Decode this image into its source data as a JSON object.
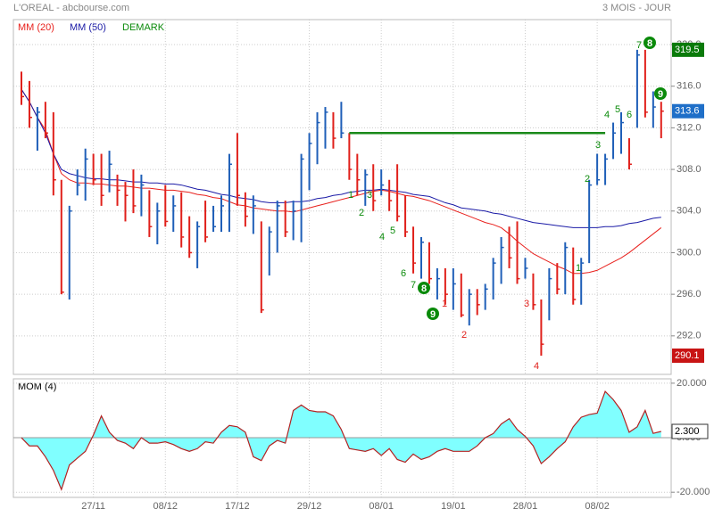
{
  "header": {
    "title": "L'OREAL - abcbourse.com",
    "period": "3 MOIS - JOUR"
  },
  "chart_data": [
    {
      "type": "ohlc",
      "high": [
        317.4,
        316.5,
        314.0,
        314.5,
        313.5,
        307.0,
        304.5,
        308.0,
        310.0,
        309.5,
        309.5,
        309.8,
        307.5,
        306.8,
        308.0,
        307.5,
        306.0,
        304.8,
        306.5,
        305.5,
        305.8,
        303.5,
        303.0,
        305.0,
        304.5,
        305.5,
        309.5,
        311.5,
        305.8,
        305.5,
        303.0,
        302.5,
        305.0,
        305.0,
        305.0,
        309.5,
        311.5,
        313.5,
        314.0,
        313.5,
        314.5,
        311.5,
        309.5,
        308.0,
        308.5,
        308.0,
        307.0,
        308.5,
        305.5,
        302.5,
        301.5,
        301.0,
        298.5,
        298.5,
        298.5,
        298.0,
        296.5,
        296.5,
        297.0,
        299.5,
        301.5,
        302.5,
        303.0,
        299.5,
        298.0,
        295.5,
        298.5,
        299.0,
        301.0,
        300.5,
        299.5,
        307.0,
        309.5,
        309.5,
        312.5,
        313.5,
        311.0,
        319.5,
        319.5,
        315.5,
        314.5
      ],
      "low": [
        314.2,
        312.0,
        309.8,
        311.0,
        305.5,
        296.0,
        295.5,
        305.5,
        305.0,
        306.5,
        304.5,
        305.8,
        304.5,
        303.0,
        303.8,
        303.5,
        301.5,
        300.8,
        302.5,
        302.0,
        300.5,
        299.5,
        298.5,
        301.0,
        302.0,
        302.0,
        302.0,
        304.5,
        302.5,
        301.8,
        294.2,
        297.8,
        300.0,
        301.5,
        301.2,
        301.0,
        306.0,
        308.5,
        310.0,
        310.0,
        311.0,
        307.0,
        305.5,
        304.5,
        304.0,
        305.5,
        304.0,
        303.0,
        301.5,
        298.0,
        297.5,
        297.0,
        295.5,
        295.0,
        294.5,
        293.8,
        293.0,
        294.0,
        294.5,
        295.5,
        297.0,
        298.5,
        297.0,
        297.5,
        294.5,
        290.1,
        293.5,
        296.0,
        296.0,
        295.0,
        295.0,
        299.0,
        306.5,
        306.5,
        309.0,
        309.5,
        308.0,
        312.0,
        313.0,
        312.0,
        311.0
      ],
      "close": [
        315.0,
        313.0,
        313.5,
        311.5,
        307.0,
        296.2,
        304.0,
        306.5,
        309.0,
        307.0,
        305.5,
        308.5,
        306.0,
        305.5,
        304.5,
        306.5,
        302.5,
        304.0,
        303.0,
        304.5,
        301.5,
        300.0,
        302.5,
        301.5,
        302.5,
        304.5,
        308.5,
        305.5,
        303.5,
        304.5,
        294.5,
        302.0,
        304.5,
        302.0,
        304.0,
        309.0,
        310.5,
        312.5,
        313.5,
        311.0,
        311.5,
        308.0,
        307.0,
        307.5,
        305.0,
        306.5,
        305.0,
        303.5,
        302.0,
        299.0,
        301.0,
        297.5,
        297.5,
        296.0,
        297.0,
        294.0,
        296.0,
        295.0,
        296.5,
        299.0,
        300.5,
        299.5,
        297.5,
        298.5,
        295.0,
        291.2,
        297.5,
        296.5,
        300.5,
        295.5,
        299.0,
        306.5,
        307.0,
        309.0,
        311.5,
        312.5,
        308.5,
        319.0,
        313.5,
        314.0,
        313.6
      ],
      "up_color": "#1f5fb8",
      "down_color": "#e0201b",
      "series": [
        {
          "name": "MM (20)",
          "color": "#e8201c",
          "values": [
            315.7,
            314.5,
            313.0,
            311.8,
            309.5,
            307.6,
            307.0,
            306.7,
            306.7,
            306.6,
            306.6,
            306.5,
            306.4,
            306.4,
            306.3,
            306.2,
            306.2,
            306.1,
            306.0,
            306.0,
            305.9,
            305.8,
            305.6,
            305.5,
            305.3,
            305.2,
            304.9,
            304.6,
            304.5,
            304.3,
            304.2,
            304.1,
            304.0,
            304.0,
            303.9,
            304.1,
            304.3,
            304.5,
            304.7,
            304.9,
            305.1,
            305.3,
            305.5,
            305.7,
            305.9,
            306.0,
            305.9,
            305.7,
            305.5,
            305.4,
            305.2,
            305.0,
            304.7,
            304.4,
            304.1,
            303.8,
            303.5,
            303.2,
            302.9,
            302.7,
            302.4,
            301.8,
            301.1,
            300.5,
            299.9,
            299.5,
            299.1,
            298.7,
            298.4,
            298.0,
            298.0,
            298.1,
            298.3,
            298.7,
            299.1,
            299.5,
            300.0,
            300.6,
            301.2,
            301.8,
            302.4
          ]
        },
        {
          "name": "MM (50)",
          "color": "#1a1aa6",
          "values": [
            315.7,
            314.5,
            313.0,
            311.5,
            309.5,
            308.0,
            307.6,
            307.4,
            307.2,
            307.1,
            307.1,
            307.0,
            307.0,
            306.9,
            306.8,
            306.8,
            306.7,
            306.7,
            306.6,
            306.6,
            306.5,
            306.3,
            306.1,
            306.0,
            305.8,
            305.6,
            305.5,
            305.3,
            305.2,
            305.1,
            304.9,
            304.8,
            304.8,
            304.8,
            304.9,
            304.9,
            305.0,
            305.2,
            305.3,
            305.5,
            305.6,
            305.8,
            305.9,
            306.0,
            306.0,
            306.1,
            306.0,
            305.9,
            305.8,
            305.6,
            305.5,
            305.4,
            305.1,
            304.8,
            304.6,
            304.3,
            304.2,
            304.1,
            304.0,
            303.8,
            303.7,
            303.5,
            303.3,
            303.1,
            302.9,
            302.8,
            302.7,
            302.6,
            302.5,
            302.4,
            302.4,
            302.4,
            302.4,
            302.5,
            302.5,
            302.6,
            302.8,
            302.9,
            303.1,
            303.3,
            303.4
          ]
        }
      ],
      "demark": {
        "name": "DEMARK",
        "color": "#0a8a0a",
        "labels": [
          {
            "text": "1",
            "color": "#0a8a0a",
            "circled": false
          },
          {
            "text": "2",
            "color": "#0a8a0a",
            "circled": false
          },
          {
            "text": "3",
            "color": "#0a8a0a",
            "circled": false
          },
          {
            "text": "4",
            "color": "#0a8a0a",
            "circled": false
          },
          {
            "text": "5",
            "color": "#0a8a0a",
            "circled": false
          },
          {
            "text": "6",
            "color": "#0a8a0a",
            "circled": false
          },
          {
            "text": "7",
            "color": "#0a8a0a",
            "circled": false
          },
          {
            "text": "8",
            "color": "#0a8a0a",
            "circled": true
          },
          {
            "text": "9",
            "color": "#0a8a0a",
            "circled": true
          },
          {
            "text": "1",
            "color": "#e0201b",
            "circled": false
          },
          {
            "text": "2",
            "color": "#e0201b",
            "circled": false
          },
          {
            "text": "3",
            "color": "#e0201b",
            "circled": false
          },
          {
            "text": "4",
            "color": "#e0201b",
            "circled": false
          },
          {
            "text": "1",
            "color": "#0a8a0a",
            "circled": false
          },
          {
            "text": "2",
            "color": "#0a8a0a",
            "circled": false
          },
          {
            "text": "3",
            "color": "#0a8a0a",
            "circled": false
          },
          {
            "text": "4",
            "color": "#0a8a0a",
            "circled": false
          },
          {
            "text": "5",
            "color": "#0a8a0a",
            "circled": false
          },
          {
            "text": "6",
            "color": "#0a8a0a",
            "circled": false
          },
          {
            "text": "7",
            "color": "#0a8a0a",
            "circled": false
          },
          {
            "text": "8",
            "color": "#0a8a0a",
            "circled": true
          },
          {
            "text": "9",
            "color": "#0a8a0a",
            "circled": true
          }
        ]
      },
      "trend_line": {
        "value": 311.5,
        "color": "#1a8a1a"
      },
      "price_markers": [
        {
          "value": 319.5,
          "color": "#0a7a0a"
        },
        {
          "value": 313.6,
          "color": "#1f6fc8"
        },
        {
          "value": 290.1,
          "color": "#c81414"
        }
      ],
      "ylim": [
        288.3,
        322.4
      ],
      "yticks": [
        {
          "value": 292,
          "label": "292.0"
        },
        {
          "value": 296,
          "label": "296.0"
        },
        {
          "value": 300,
          "label": "300.0"
        },
        {
          "value": 304,
          "label": "304.0"
        },
        {
          "value": 308,
          "label": "308.0"
        },
        {
          "value": 312,
          "label": "312.0"
        },
        {
          "value": 316,
          "label": "316.0"
        },
        {
          "value": 320,
          "label": "320.0"
        }
      ],
      "grid": true
    },
    {
      "type": "area",
      "title": "MOM (4)",
      "categories": [
        null,
        null,
        null,
        null,
        null,
        null,
        null,
        null,
        null,
        "27/11",
        null,
        null,
        null,
        null,
        null,
        null,
        null,
        null,
        "08/12",
        null,
        null,
        null,
        null,
        null,
        null,
        null,
        null,
        "17/12",
        null,
        null,
        null,
        null,
        null,
        null,
        null,
        null,
        "29/12",
        null,
        null,
        null,
        null,
        null,
        null,
        null,
        null,
        "08/01",
        null,
        null,
        null,
        null,
        null,
        null,
        null,
        null,
        "19/01",
        null,
        null,
        null,
        null,
        null,
        null,
        null,
        null,
        "28/01",
        null,
        null,
        null,
        null,
        null,
        null,
        null,
        null,
        "08/02",
        null,
        null,
        null,
        null,
        null,
        null,
        null,
        null
      ],
      "values": [
        0,
        -3,
        -3,
        -7,
        -12,
        -19,
        -10,
        -7.5,
        -5,
        1,
        8,
        2,
        -1,
        -2,
        -4,
        0,
        -2,
        -2,
        -1.5,
        -2.5,
        -4,
        -5,
        -4,
        -1.5,
        -2,
        2,
        4.5,
        4,
        2,
        -7,
        -8.4,
        -3,
        -1,
        -2,
        10,
        12,
        10,
        9.5,
        9.5,
        8,
        3,
        -4,
        -4.5,
        -5,
        -4,
        -6.5,
        -4,
        -8,
        -9,
        -6,
        -8,
        -7,
        -5,
        -4,
        -5,
        -5,
        -5,
        -3,
        0,
        1.5,
        5,
        7,
        3,
        0.5,
        -3,
        -9.5,
        -7,
        -4,
        -1.5,
        4,
        7.5,
        8.5,
        9,
        17,
        14,
        10,
        2,
        4,
        10,
        1.6,
        2.3
      ],
      "color": "#b22222",
      "fill_color": "#80ffff",
      "last_marker": {
        "value": 2.3,
        "label": "2.300"
      },
      "ylim": [
        -21.9,
        21.6
      ],
      "yticks": [
        {
          "value": -20,
          "label": "-20.000"
        },
        {
          "value": 0,
          "label": "0.000"
        },
        {
          "value": 20,
          "label": "20.000"
        }
      ],
      "grid": true
    }
  ]
}
